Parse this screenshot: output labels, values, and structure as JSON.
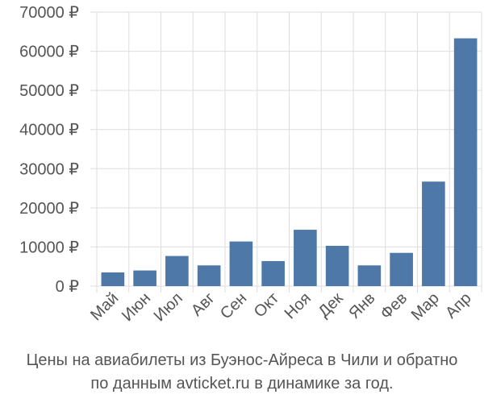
{
  "chart_data": {
    "type": "bar",
    "categories": [
      "Май",
      "Июн",
      "Июл",
      "Авг",
      "Сен",
      "Окт",
      "Ноя",
      "Дек",
      "Янв",
      "Фев",
      "Мар",
      "Апр"
    ],
    "values": [
      3500,
      4000,
      7700,
      5300,
      11400,
      6400,
      14400,
      10300,
      5300,
      8500,
      26700,
      63300
    ],
    "ylim": [
      0,
      70000
    ],
    "y_ticks": [
      0,
      10000,
      20000,
      30000,
      40000,
      50000,
      60000,
      70000
    ],
    "y_tick_labels": [
      "0 ₽",
      "10000 ₽",
      "20000 ₽",
      "30000 ₽",
      "40000 ₽",
      "50000 ₽",
      "60000 ₽",
      "70000 ₽"
    ],
    "grid": true,
    "bar_color": "#4d78a8",
    "grid_color": "#dddddd"
  },
  "caption": {
    "line1": "Цены на авиабилеты из Буэнос-Айреса в Чили и обратно",
    "line2": "по данным avticket.ru в динамике за год."
  }
}
